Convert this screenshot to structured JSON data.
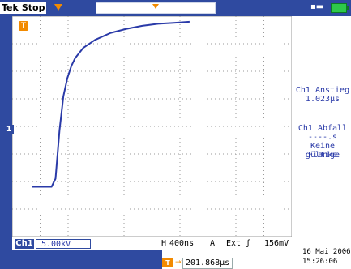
{
  "header": {
    "brand": "Tek",
    "status": "Stop"
  },
  "icons": {
    "trigger_badge": "T",
    "channel_marker": "1",
    "power": "▪▬",
    "battery": "battery-icon"
  },
  "measurements": {
    "rise_title": "Ch1 Anstieg",
    "rise_value": "1.023µs",
    "fall_title": "Ch1 Abfall",
    "fall_value": "----.s",
    "fall_note_line1": "Keine gültige",
    "fall_note_line2": "Flanke"
  },
  "bottom": {
    "channel_label": "Ch1",
    "channel_scale": "5.00kV",
    "time_prefix": "H",
    "time_div": "400ns",
    "acq_mode": "A",
    "trigger_source": "Ext",
    "trigger_slope": "ʃ",
    "trigger_level": "156mV",
    "trigger_position": "201.868µs",
    "trigger_position_icon": "T",
    "trigger_position_arrow": "→▾",
    "date": "16 Mai  2006",
    "time": "15:26:06"
  },
  "colors": {
    "frame": "#2f4aa0",
    "trace": "#2a3aa8",
    "trigger": "#f28a00",
    "battery": "#2ec94a"
  },
  "chart_data": {
    "type": "line",
    "series": [
      {
        "x": [
          -1.2,
          -0.8,
          -0.6,
          -0.4,
          -0.2,
          0,
          0.2,
          0.4,
          0.6,
          0.8,
          1.0,
          1.4,
          2.0,
          2.8,
          3.6,
          4.4,
          5.2,
          6.0,
          6.8
        ],
        "values": [
          -3.0,
          -3.0,
          -3.0,
          -3.0,
          -3.0,
          -2.6,
          -0.2,
          1.5,
          2.4,
          3.0,
          3.4,
          3.9,
          4.3,
          4.65,
          4.85,
          5.0,
          5.1,
          5.15,
          5.2
        ]
      }
    ]
  }
}
